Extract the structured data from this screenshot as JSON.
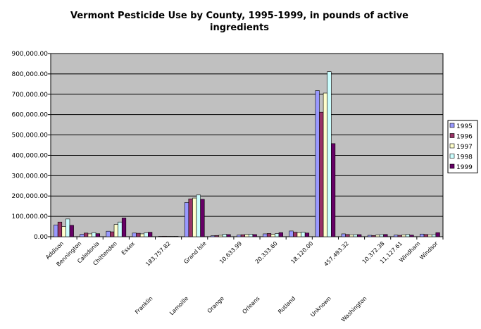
{
  "chart_data": {
    "type": "bar",
    "title_line1": "Vermont Pesticide Use by County, 1995-1999, in pounds of active",
    "title_line2": "ingredients",
    "ylim": [
      0,
      900000
    ],
    "yticks": [
      "0.00",
      "100,000.00",
      "200,000.00",
      "300,000.00",
      "400,000.00",
      "500,000.00",
      "600,000.00",
      "700,000.00",
      "800,000.00",
      "900,000.00"
    ],
    "grid": true,
    "legend_position": "right",
    "categories": [
      "Addison",
      "Bennington",
      "Caledonia",
      "Chittenden",
      "Essex",
      "Franklin",
      "Grand Isle",
      "Lamoille",
      "Orange",
      "Orleans",
      "Rutland",
      "Unknown",
      "Washington",
      "Windham",
      "Windsor"
    ],
    "xtick_labels": [
      {
        "text": "Addison",
        "row": 0
      },
      {
        "text": "Bennington",
        "row": 0
      },
      {
        "text": "Caledonia",
        "row": 0
      },
      {
        "text": "Chittenden",
        "row": 0
      },
      {
        "text": "Essex",
        "row": 0
      },
      {
        "text": "Franklin",
        "row": 1
      },
      {
        "text": "183,757.82",
        "row": 0
      },
      {
        "text": "Lamoille",
        "row": 1
      },
      {
        "text": "Grand Isle",
        "row": 0
      },
      {
        "text": "Orange",
        "row": 1
      },
      {
        "text": "10,633.99",
        "row": 0
      },
      {
        "text": "Orleans",
        "row": 1
      },
      {
        "text": "20,333.60",
        "row": 0
      },
      {
        "text": "Rutland",
        "row": 1
      },
      {
        "text": "18,120.00",
        "row": 0
      },
      {
        "text": "Unknown",
        "row": 1
      },
      {
        "text": "457,493.32",
        "row": 0
      },
      {
        "text": "Washington",
        "row": 1
      },
      {
        "text": "10,372.38",
        "row": 0
      },
      {
        "text": "11,127.61",
        "row": 0
      },
      {
        "text": "Windham",
        "row": 0
      },
      {
        "text": "Windsor",
        "row": 0
      }
    ],
    "series": [
      {
        "name": "1995",
        "color": "#9999ff",
        "values": [
          58000,
          12000,
          27000,
          18000,
          2000,
          168000,
          5000,
          8000,
          14000,
          28000,
          718000,
          14000,
          7000,
          8000,
          13000
        ]
      },
      {
        "name": "1996",
        "color": "#993366",
        "values": [
          72000,
          18000,
          24000,
          17000,
          2500,
          186000,
          6000,
          10000,
          16000,
          22000,
          612000,
          11000,
          6000,
          7000,
          11000
        ]
      },
      {
        "name": "1997",
        "color": "#ffffcc",
        "values": [
          50000,
          14000,
          60000,
          14000,
          2000,
          190000,
          7000,
          11000,
          12000,
          20000,
          706000,
          9000,
          8000,
          9000,
          9000
        ]
      },
      {
        "name": "1998",
        "color": "#ccffff",
        "values": [
          87000,
          20000,
          72000,
          20000,
          2000,
          205000,
          12000,
          12000,
          15000,
          22000,
          811000,
          10000,
          10000,
          11000,
          10000
        ]
      },
      {
        "name": "1999",
        "color": "#660066",
        "values": [
          56000,
          15000,
          92000,
          22000,
          2000,
          183757.82,
          10633.99,
          10633.99,
          20333.6,
          18120.0,
          457493.32,
          10372.38,
          11127.61,
          8000,
          20000
        ]
      }
    ]
  }
}
